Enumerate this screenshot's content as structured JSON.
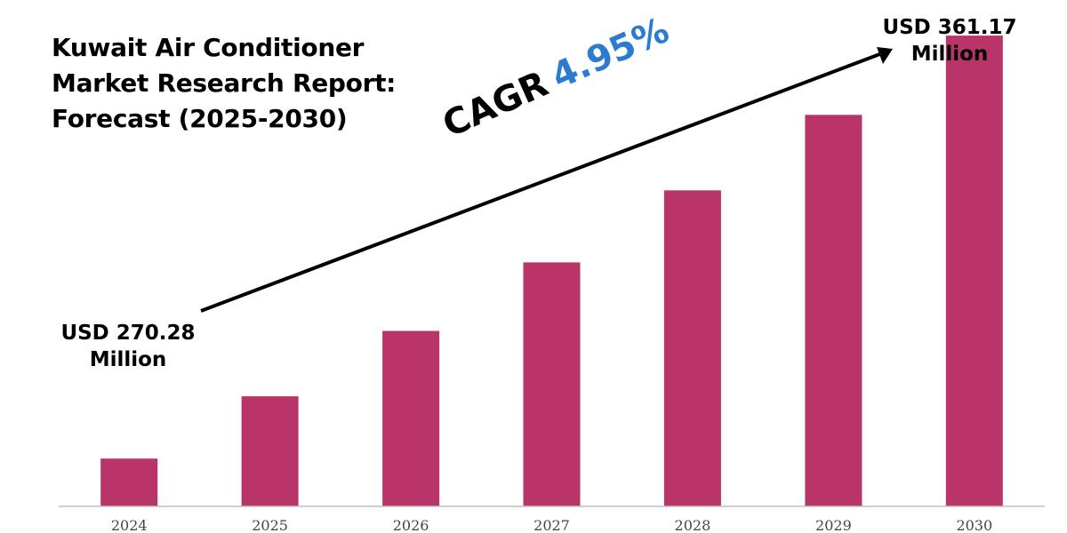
{
  "title_lines": [
    "Kuwait Air Conditioner",
    "Market Research Report:",
    "Forecast (2025-2030)"
  ],
  "start_value": {
    "line1": "USD 270.28",
    "line2": "Million"
  },
  "end_value": {
    "line1": "USD 361.17",
    "line2": "Million"
  },
  "cagr": {
    "label": "CAGR",
    "value": "4.95%"
  },
  "colors": {
    "bar": "#b93468",
    "cagr_value": "#2a7bd1",
    "axis": "#bfbfbf"
  },
  "chart_data": {
    "type": "bar",
    "title": "Kuwait Air Conditioner Market Research Report: Forecast (2025-2030)",
    "categories": [
      "2024",
      "2025",
      "2026",
      "2027",
      "2028",
      "2029",
      "2030"
    ],
    "values": [
      270.28,
      283.66,
      297.7,
      312.43,
      327.9,
      344.13,
      361.17
    ],
    "unit": "USD Million",
    "xlabel": "",
    "ylabel": "",
    "ylim": [
      260,
      365
    ],
    "grid": false,
    "legend": "none"
  }
}
